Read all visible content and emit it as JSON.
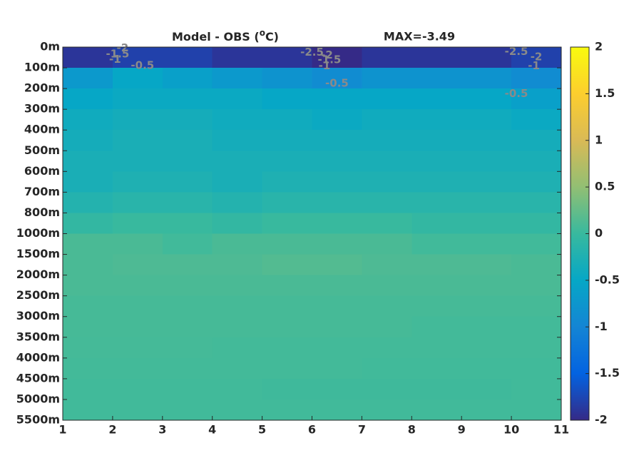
{
  "chart_data": {
    "type": "heatmap",
    "title": {
      "prefix": "Model - OBS (",
      "superscript": "o",
      "suffix": "C)"
    },
    "max_label": "MAX=-3.49",
    "categories": [
      "0m",
      "100m",
      "200m",
      "300m",
      "400m",
      "500m",
      "600m",
      "700m",
      "800m",
      "1000m",
      "1500m",
      "2000m",
      "2500m",
      "3000m",
      "3500m",
      "4000m",
      "4500m",
      "5000m",
      "5500m"
    ],
    "xlim": [
      1,
      11
    ],
    "xticks": [
      1,
      2,
      3,
      4,
      5,
      6,
      7,
      8,
      9,
      10,
      11
    ],
    "z": [
      [
        -1.9,
        -1.8,
        -1.8,
        -1.9,
        -1.9,
        -2,
        -1.9,
        -1.9,
        -1.9,
        -1.8
      ],
      [
        -0.7,
        -0.5,
        -0.6,
        -0.7,
        -0.8,
        -0.9,
        -0.8,
        -0.8,
        -0.8,
        -0.9
      ],
      [
        -0.5,
        -0.45,
        -0.45,
        -0.45,
        -0.5,
        -0.5,
        -0.5,
        -0.5,
        -0.5,
        -0.6
      ],
      [
        -0.4,
        -0.35,
        -0.35,
        -0.4,
        -0.4,
        -0.45,
        -0.4,
        -0.4,
        -0.4,
        -0.45
      ],
      [
        -0.35,
        -0.3,
        -0.3,
        -0.35,
        -0.35,
        -0.35,
        -0.35,
        -0.35,
        -0.35,
        -0.35
      ],
      [
        -0.3,
        -0.3,
        -0.3,
        -0.3,
        -0.3,
        -0.3,
        -0.3,
        -0.3,
        -0.3,
        -0.3
      ],
      [
        -0.3,
        -0.25,
        -0.25,
        -0.3,
        -0.25,
        -0.25,
        -0.25,
        -0.25,
        -0.25,
        -0.25
      ],
      [
        -0.2,
        -0.15,
        -0.15,
        -0.2,
        -0.15,
        -0.15,
        -0.15,
        -0.15,
        -0.15,
        -0.15
      ],
      [
        -0.05,
        0,
        0,
        -0.05,
        0,
        0,
        0,
        -0.05,
        -0.05,
        -0.05
      ],
      [
        0.1,
        0.1,
        0.05,
        0.1,
        0.1,
        0.1,
        0.1,
        0.05,
        0.05,
        0.05
      ],
      [
        0.1,
        0.12,
        0.12,
        0.12,
        0.15,
        0.15,
        0.12,
        0.12,
        0.12,
        0.1
      ],
      [
        0.1,
        0.1,
        0.1,
        0.1,
        0.1,
        0.1,
        0.1,
        0.1,
        0.1,
        0.1
      ],
      [
        0.08,
        0.08,
        0.08,
        0.08,
        0.08,
        0.08,
        0.08,
        0.08,
        0.08,
        0.08
      ],
      [
        0.08,
        0.08,
        0.08,
        0.08,
        0.08,
        0.08,
        0.08,
        0.06,
        0.06,
        0.06
      ],
      [
        0.07,
        0.07,
        0.07,
        0.06,
        0.06,
        0.06,
        0.06,
        0.06,
        0.06,
        0.06
      ],
      [
        0.06,
        0.06,
        0.06,
        0.06,
        0.06,
        0.06,
        0.05,
        0.05,
        0.05,
        0.05
      ],
      [
        0.05,
        0.05,
        0.05,
        0.05,
        0.04,
        0.04,
        0.04,
        0.04,
        0.04,
        0.05
      ],
      [
        0.05,
        0.05,
        0.05,
        0.05,
        0.05,
        0.05,
        0.05,
        0.05,
        0.05,
        0.05
      ]
    ],
    "clim": [
      -2,
      2
    ],
    "cticks": [
      -2,
      -1.5,
      -1,
      -0.5,
      0,
      0.5,
      1,
      1.5,
      2
    ],
    "colormap": [
      "#352a87",
      "#0363e1",
      "#1485d4",
      "#06a7c6",
      "#38b99e",
      "#92bf73",
      "#d9ba56",
      "#fcce2e",
      "#f9fb0e"
    ],
    "contour_labels": [
      {
        "text": "-2",
        "x": 2.2,
        "y": 0.05
      },
      {
        "text": "-1.5",
        "x": 2.1,
        "y": 0.35
      },
      {
        "text": "-1",
        "x": 2.05,
        "y": 0.6
      },
      {
        "text": "-0.5",
        "x": 2.6,
        "y": 0.9
      },
      {
        "text": "-2.5",
        "x": 6.0,
        "y": 0.25
      },
      {
        "text": "-2",
        "x": 6.3,
        "y": 0.4
      },
      {
        "text": "-1.5",
        "x": 6.35,
        "y": 0.62
      },
      {
        "text": "-1",
        "x": 6.25,
        "y": 0.92
      },
      {
        "text": "-0.5",
        "x": 6.5,
        "y": 1.75
      },
      {
        "text": "-2.5",
        "x": 10.1,
        "y": 0.22
      },
      {
        "text": "-2",
        "x": 10.5,
        "y": 0.48
      },
      {
        "text": "-1",
        "x": 10.45,
        "y": 0.92
      },
      {
        "text": "-0.5",
        "x": 10.1,
        "y": 2.25
      }
    ]
  }
}
